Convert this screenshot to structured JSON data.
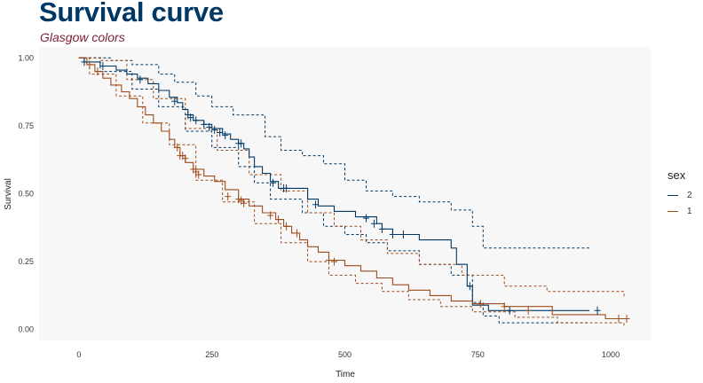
{
  "chart_data": {
    "type": "line",
    "title": "Survival curve",
    "subtitle": "Glasgow colors",
    "xlabel": "Time",
    "ylabel": "Survival",
    "xlim": [
      -75,
      1075
    ],
    "ylim": [
      -0.04,
      1.04
    ],
    "x_ticks": [
      "0",
      "250",
      "500",
      "750",
      "1000"
    ],
    "y_ticks": [
      "0.00",
      "0.25",
      "0.50",
      "0.75",
      "1.00"
    ],
    "x_tick_values": [
      0,
      250,
      500,
      750,
      1000
    ],
    "y_tick_values": [
      0,
      0.25,
      0.5,
      0.75,
      1
    ],
    "legend_title": "sex",
    "legend_position": "right",
    "plot_background": "#f7f7f7",
    "series": [
      {
        "name": "2",
        "color": "#003865",
        "steps": [
          [
            0,
            1.0
          ],
          [
            10,
            0.985
          ],
          [
            40,
            0.97
          ],
          [
            70,
            0.955
          ],
          [
            90,
            0.94
          ],
          [
            110,
            0.925
          ],
          [
            130,
            0.905
          ],
          [
            150,
            0.88
          ],
          [
            170,
            0.855
          ],
          [
            185,
            0.835
          ],
          [
            195,
            0.81
          ],
          [
            205,
            0.79
          ],
          [
            215,
            0.77
          ],
          [
            235,
            0.755
          ],
          [
            250,
            0.74
          ],
          [
            270,
            0.72
          ],
          [
            285,
            0.7
          ],
          [
            300,
            0.685
          ],
          [
            310,
            0.665
          ],
          [
            320,
            0.635
          ],
          [
            330,
            0.6
          ],
          [
            345,
            0.575
          ],
          [
            360,
            0.545
          ],
          [
            375,
            0.52
          ],
          [
            430,
            0.48
          ],
          [
            450,
            0.455
          ],
          [
            480,
            0.435
          ],
          [
            520,
            0.415
          ],
          [
            560,
            0.39
          ],
          [
            570,
            0.37
          ],
          [
            590,
            0.35
          ],
          [
            640,
            0.33
          ],
          [
            700,
            0.3
          ],
          [
            710,
            0.24
          ],
          [
            730,
            0.16
          ],
          [
            740,
            0.09
          ],
          [
            770,
            0.07
          ],
          [
            960,
            0.07
          ]
        ],
        "upper": [
          [
            0,
            1.0
          ],
          [
            60,
            0.99
          ],
          [
            100,
            0.975
          ],
          [
            150,
            0.94
          ],
          [
            180,
            0.91
          ],
          [
            220,
            0.86
          ],
          [
            250,
            0.82
          ],
          [
            290,
            0.79
          ],
          [
            350,
            0.71
          ],
          [
            380,
            0.66
          ],
          [
            420,
            0.64
          ],
          [
            460,
            0.61
          ],
          [
            500,
            0.55
          ],
          [
            540,
            0.51
          ],
          [
            590,
            0.49
          ],
          [
            640,
            0.47
          ],
          [
            700,
            0.44
          ],
          [
            740,
            0.38
          ],
          [
            760,
            0.3
          ],
          [
            960,
            0.3
          ]
        ],
        "lower": [
          [
            0,
            1.0
          ],
          [
            40,
            0.95
          ],
          [
            100,
            0.885
          ],
          [
            150,
            0.82
          ],
          [
            200,
            0.73
          ],
          [
            250,
            0.67
          ],
          [
            300,
            0.6
          ],
          [
            330,
            0.54
          ],
          [
            360,
            0.48
          ],
          [
            420,
            0.43
          ],
          [
            460,
            0.38
          ],
          [
            500,
            0.35
          ],
          [
            540,
            0.32
          ],
          [
            580,
            0.29
          ],
          [
            640,
            0.24
          ],
          [
            700,
            0.2
          ],
          [
            740,
            0.1
          ],
          [
            760,
            0.05
          ],
          [
            790,
            0.025
          ],
          [
            960,
            0.025
          ]
        ],
        "censored": [
          [
            10,
            0.985
          ],
          [
            45,
            0.97
          ],
          [
            115,
            0.92
          ],
          [
            180,
            0.84
          ],
          [
            205,
            0.79
          ],
          [
            210,
            0.78
          ],
          [
            220,
            0.77
          ],
          [
            235,
            0.755
          ],
          [
            245,
            0.745
          ],
          [
            255,
            0.735
          ],
          [
            265,
            0.725
          ],
          [
            275,
            0.715
          ],
          [
            300,
            0.685
          ],
          [
            305,
            0.685
          ],
          [
            365,
            0.54
          ],
          [
            385,
            0.52
          ],
          [
            390,
            0.52
          ],
          [
            445,
            0.46
          ],
          [
            540,
            0.41
          ],
          [
            555,
            0.39
          ],
          [
            570,
            0.37
          ],
          [
            590,
            0.35
          ],
          [
            610,
            0.35
          ],
          [
            735,
            0.16
          ],
          [
            810,
            0.07
          ],
          [
            975,
            0.07
          ]
        ]
      },
      {
        "name": "1",
        "color": "#9f4b1a",
        "steps": [
          [
            0,
            1.0
          ],
          [
            15,
            0.975
          ],
          [
            30,
            0.95
          ],
          [
            45,
            0.925
          ],
          [
            60,
            0.9
          ],
          [
            80,
            0.875
          ],
          [
            95,
            0.85
          ],
          [
            110,
            0.82
          ],
          [
            125,
            0.79
          ],
          [
            140,
            0.76
          ],
          [
            155,
            0.73
          ],
          [
            170,
            0.7
          ],
          [
            180,
            0.67
          ],
          [
            190,
            0.64
          ],
          [
            200,
            0.615
          ],
          [
            215,
            0.59
          ],
          [
            235,
            0.565
          ],
          [
            255,
            0.545
          ],
          [
            275,
            0.515
          ],
          [
            300,
            0.48
          ],
          [
            320,
            0.455
          ],
          [
            345,
            0.43
          ],
          [
            370,
            0.405
          ],
          [
            385,
            0.38
          ],
          [
            400,
            0.355
          ],
          [
            415,
            0.33
          ],
          [
            430,
            0.305
          ],
          [
            450,
            0.285
          ],
          [
            470,
            0.255
          ],
          [
            500,
            0.235
          ],
          [
            530,
            0.215
          ],
          [
            560,
            0.19
          ],
          [
            590,
            0.165
          ],
          [
            620,
            0.145
          ],
          [
            660,
            0.125
          ],
          [
            700,
            0.105
          ],
          [
            740,
            0.095
          ],
          [
            800,
            0.085
          ],
          [
            890,
            0.055
          ],
          [
            990,
            0.04
          ],
          [
            1025,
            0.04
          ]
        ],
        "upper": [
          [
            0,
            1.0
          ],
          [
            40,
            0.99
          ],
          [
            90,
            0.92
          ],
          [
            140,
            0.85
          ],
          [
            200,
            0.74
          ],
          [
            260,
            0.66
          ],
          [
            320,
            0.57
          ],
          [
            380,
            0.51
          ],
          [
            430,
            0.43
          ],
          [
            480,
            0.38
          ],
          [
            530,
            0.33
          ],
          [
            580,
            0.28
          ],
          [
            640,
            0.24
          ],
          [
            720,
            0.2
          ],
          [
            800,
            0.16
          ],
          [
            880,
            0.14
          ],
          [
            1025,
            0.12
          ]
        ],
        "lower": [
          [
            0,
            1.0
          ],
          [
            20,
            0.94
          ],
          [
            70,
            0.86
          ],
          [
            120,
            0.76
          ],
          [
            170,
            0.68
          ],
          [
            220,
            0.55
          ],
          [
            270,
            0.47
          ],
          [
            330,
            0.39
          ],
          [
            380,
            0.32
          ],
          [
            430,
            0.25
          ],
          [
            470,
            0.2
          ],
          [
            520,
            0.17
          ],
          [
            570,
            0.14
          ],
          [
            620,
            0.11
          ],
          [
            680,
            0.085
          ],
          [
            740,
            0.065
          ],
          [
            820,
            0.045
          ],
          [
            900,
            0.025
          ],
          [
            1025,
            0.015
          ]
        ],
        "censored": [
          [
            20,
            0.975
          ],
          [
            35,
            0.95
          ],
          [
            185,
            0.67
          ],
          [
            190,
            0.64
          ],
          [
            195,
            0.64
          ],
          [
            200,
            0.63
          ],
          [
            215,
            0.59
          ],
          [
            220,
            0.58
          ],
          [
            225,
            0.57
          ],
          [
            280,
            0.49
          ],
          [
            300,
            0.48
          ],
          [
            305,
            0.475
          ],
          [
            310,
            0.465
          ],
          [
            360,
            0.42
          ],
          [
            375,
            0.405
          ],
          [
            390,
            0.38
          ],
          [
            410,
            0.355
          ],
          [
            470,
            0.255
          ],
          [
            480,
            0.25
          ],
          [
            755,
            0.095
          ],
          [
            800,
            0.085
          ],
          [
            845,
            0.07
          ],
          [
            1015,
            0.04
          ],
          [
            1030,
            0.04
          ]
        ]
      }
    ]
  }
}
